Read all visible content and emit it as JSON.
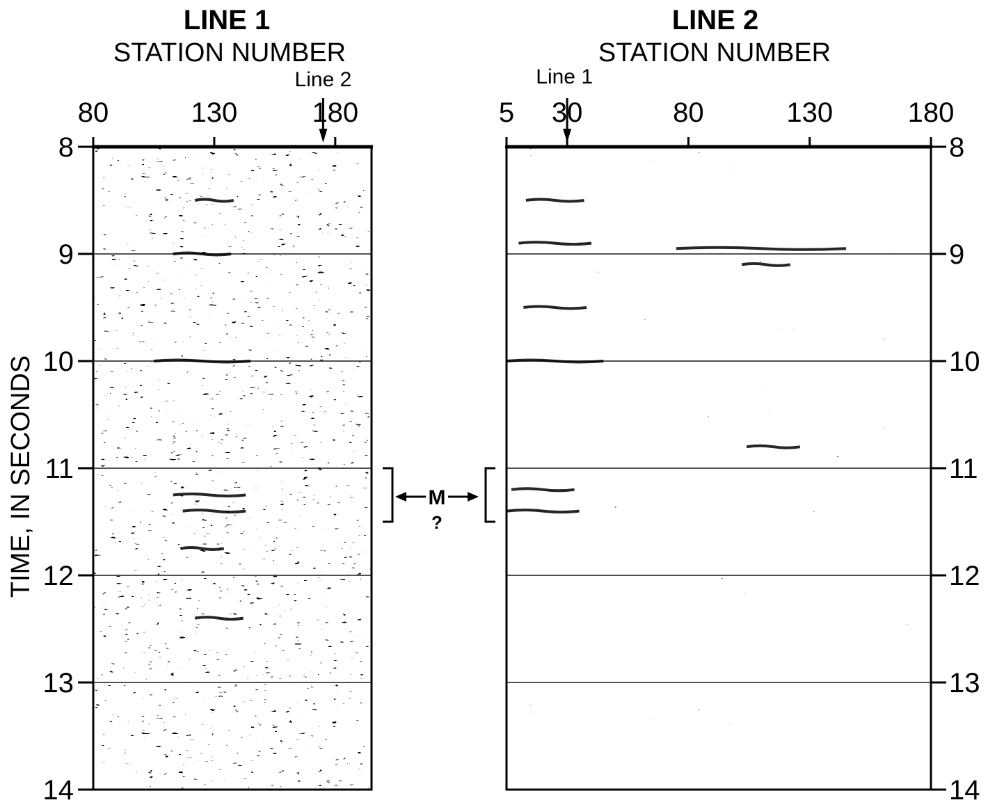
{
  "chart_data": [
    {
      "type": "heatmap",
      "title": "LINE 1",
      "subtitle": "STATION NUMBER",
      "ylabel": "TIME, IN SECONDS",
      "x_ticks": [
        80,
        130,
        180
      ],
      "xlim": [
        80,
        195
      ],
      "y_ticks": [
        8,
        9,
        10,
        11,
        12,
        13,
        14
      ],
      "ylim": [
        8,
        14
      ],
      "y_inverted": true,
      "gridlines_at_y": [
        9,
        10,
        11,
        12,
        13
      ],
      "crossing_marker": {
        "label": "Line 2",
        "station": 175
      },
      "bracket": {
        "from": 11,
        "to": 11.5,
        "side": "right"
      },
      "energy_bands": [
        {
          "station": 130,
          "time": 8.5,
          "length": 16
        },
        {
          "station": 125,
          "time": 9.0,
          "length": 24
        },
        {
          "station": 125,
          "time": 10.0,
          "length": 40
        },
        {
          "station": 128,
          "time": 11.25,
          "length": 30
        },
        {
          "station": 130,
          "time": 11.4,
          "length": 26
        },
        {
          "station": 125,
          "time": 11.75,
          "length": 18
        },
        {
          "station": 132,
          "time": 12.4,
          "length": 20
        }
      ]
    },
    {
      "type": "heatmap",
      "title": "LINE 2",
      "subtitle": "STATION NUMBER",
      "x_ticks": [
        5,
        30,
        80,
        130,
        180
      ],
      "xlim": [
        5,
        180
      ],
      "y_ticks": [
        8,
        9,
        10,
        11,
        12,
        13,
        14
      ],
      "ylim": [
        8,
        14
      ],
      "y_inverted": true,
      "gridlines_at_y": [
        9,
        10,
        11,
        12,
        13
      ],
      "crossing_marker": {
        "label": "Line 1",
        "station": 30
      },
      "bracket": {
        "from": 11,
        "to": 11.5,
        "side": "left"
      },
      "energy_bands": [
        {
          "station": 25,
          "time": 8.5,
          "length": 24
        },
        {
          "station": 25,
          "time": 8.9,
          "length": 30
        },
        {
          "station": 110,
          "time": 8.95,
          "length": 70
        },
        {
          "station": 112,
          "time": 9.1,
          "length": 20
        },
        {
          "station": 25,
          "time": 9.5,
          "length": 26
        },
        {
          "station": 25,
          "time": 10.0,
          "length": 40
        },
        {
          "station": 115,
          "time": 10.8,
          "length": 22
        },
        {
          "station": 20,
          "time": 11.2,
          "length": 26
        },
        {
          "station": 20,
          "time": 11.4,
          "length": 30
        }
      ]
    }
  ],
  "annotation": {
    "m_label": "M",
    "question_mark": "?"
  }
}
